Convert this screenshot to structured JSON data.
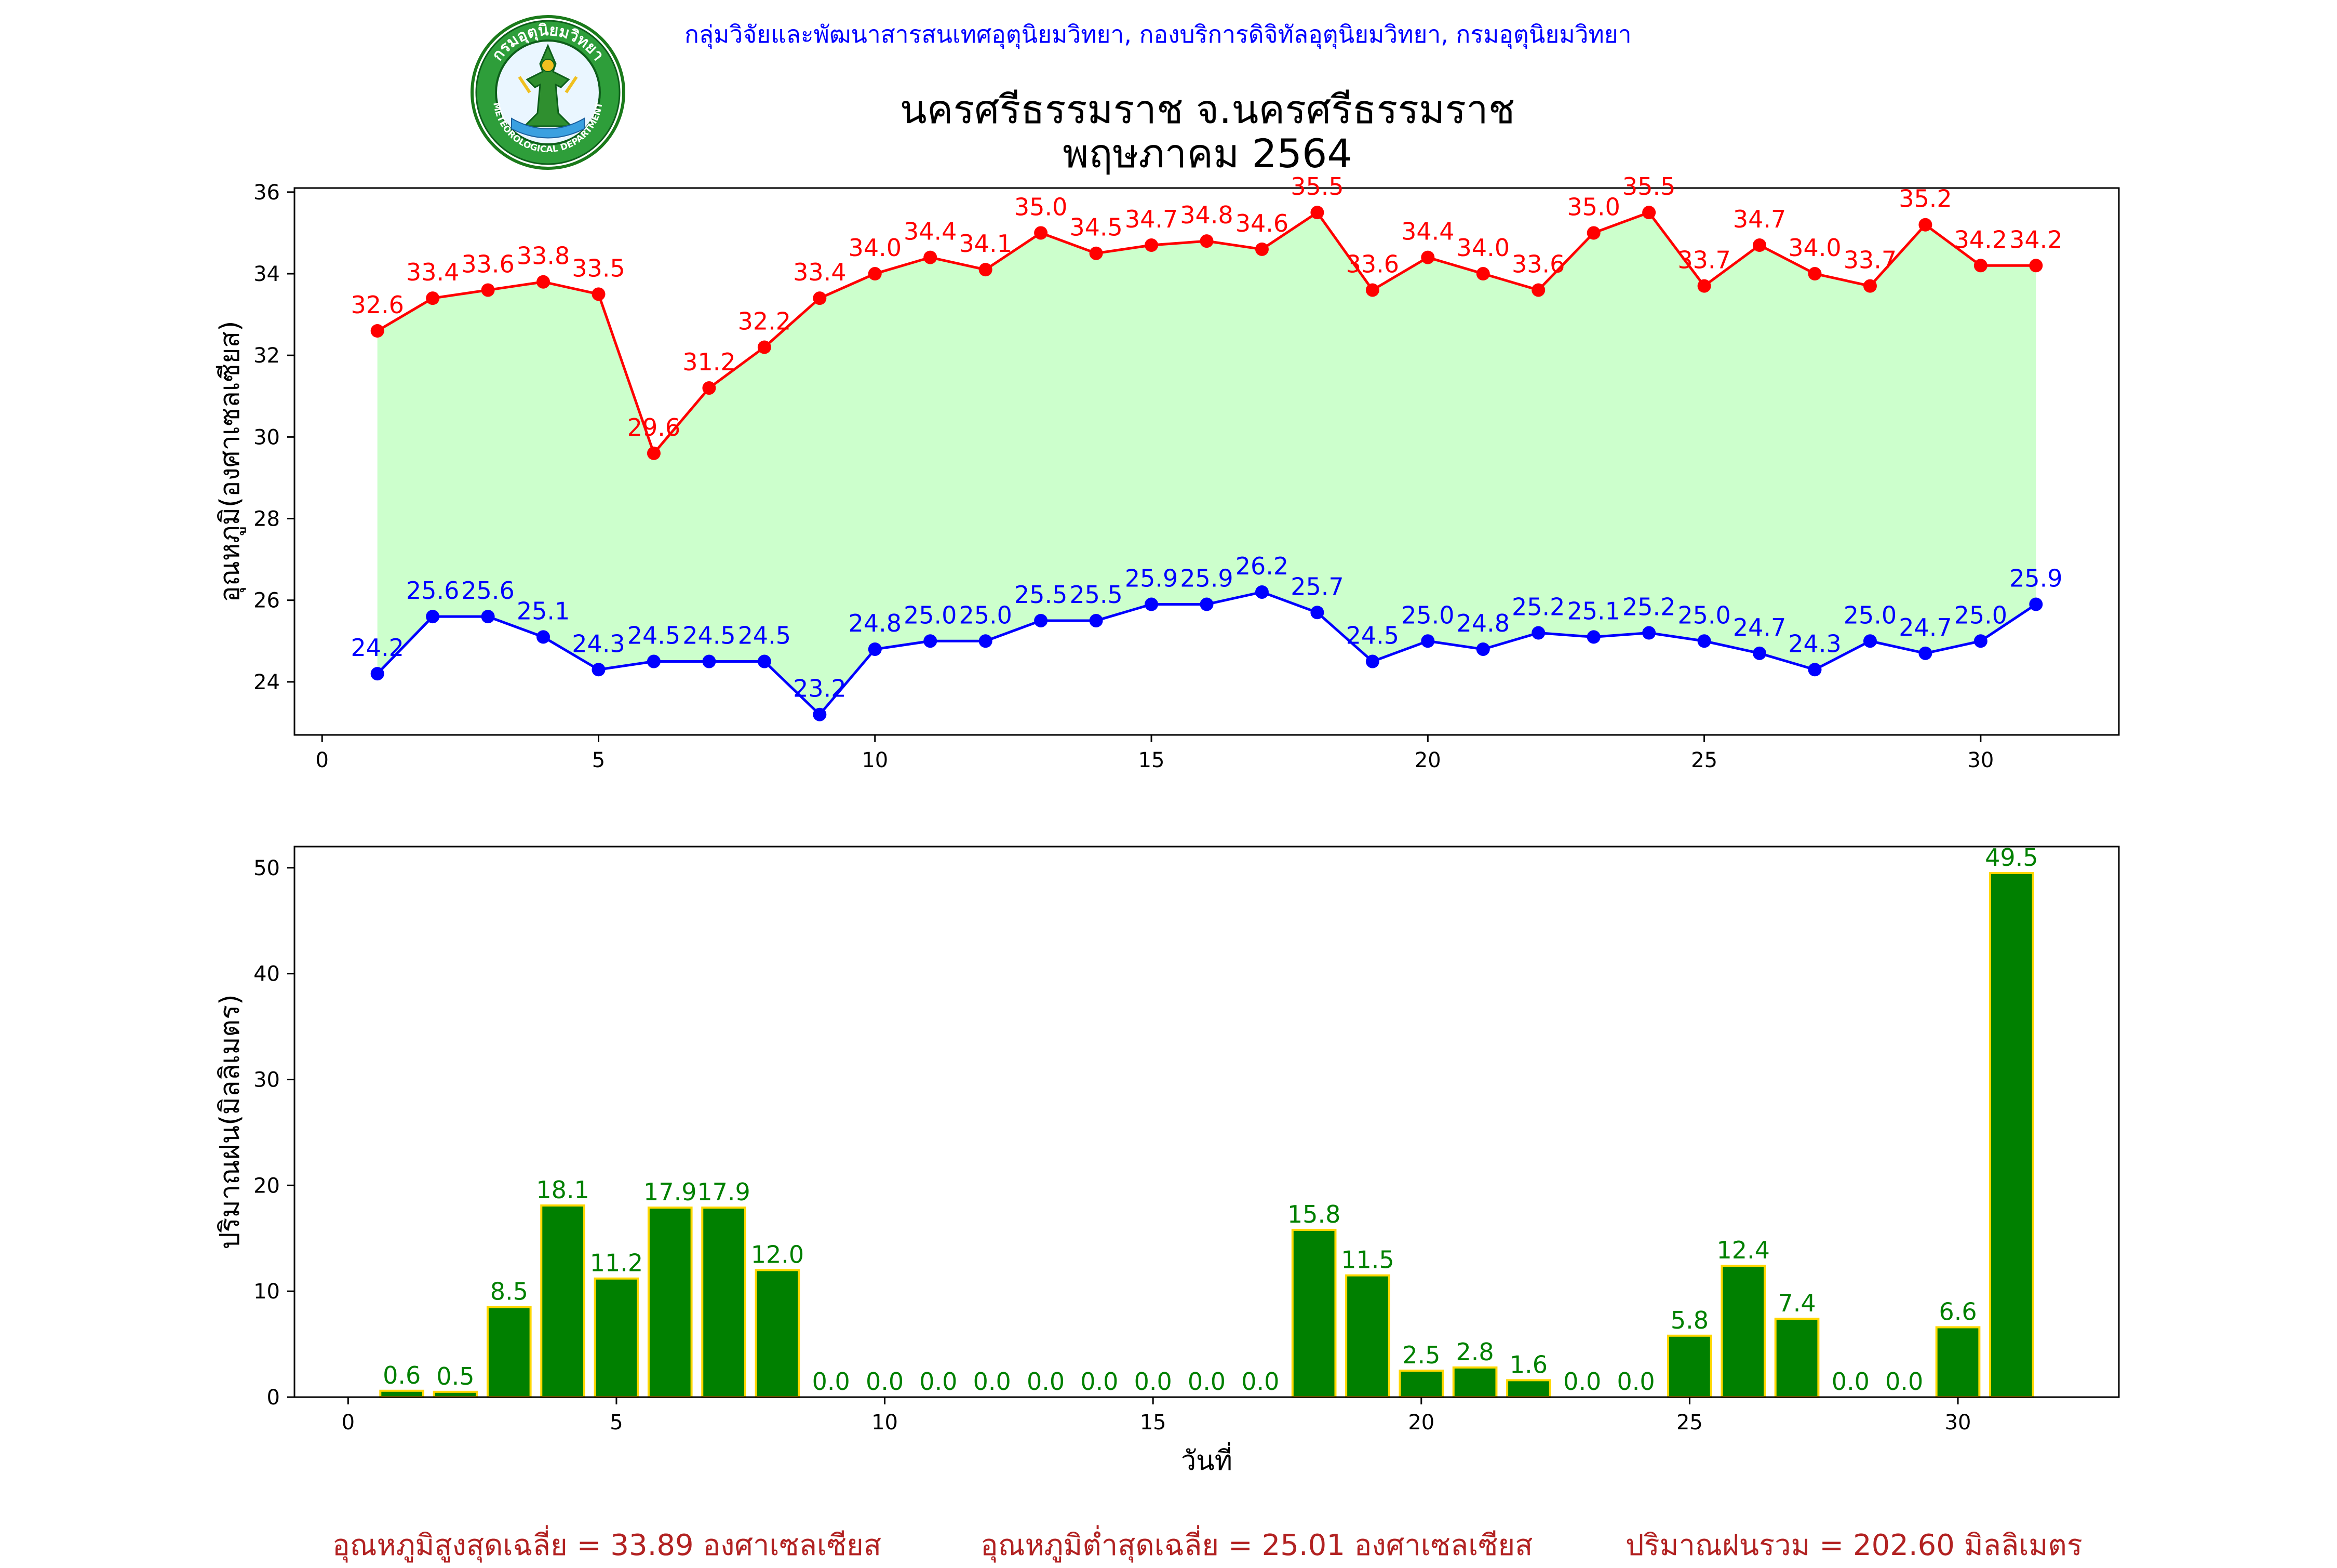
{
  "header": {
    "credit": "กลุ่มวิจัยและพัฒนาสารสนเทศอุตุนิยมวิทยา, กองบริการดิจิทัลอุตุนิยมวิทยา, กรมอุตุนิยมวิทยา",
    "title_line1": "นครศรีธรรมราช จ.นครศรีธรรมราช",
    "title_line2": "พฤษภาคม 2564",
    "logo": {
      "icon": "meteorological-department-seal",
      "ring_text_top": "กรมอุตุนิยมวิทยา",
      "ring_text_bottom": "METEOROLOGICAL DEPARTMENT"
    }
  },
  "summary": {
    "max_avg": "อุณหภูมิสูงสุดเฉลี่ย = 33.89 องศาเซลเซียส",
    "min_avg": "อุณหภูมิต่ำสุดเฉลี่ย = 25.01 องศาเซลเซียส",
    "rain_total": "ปริมาณฝนรวม = 202.60 มิลลิเมตร"
  },
  "chart_data": [
    {
      "type": "line",
      "ylabel": "อุณหภูมิ(องศาเซลเซียส)",
      "xlabel": "",
      "xlim": [
        -0.5,
        32.5
      ],
      "ylim": [
        22.7,
        36.1
      ],
      "xticks": [
        0,
        5,
        10,
        15,
        20,
        25,
        30
      ],
      "yticks": [
        24,
        26,
        28,
        30,
        32,
        34,
        36
      ],
      "x": [
        1,
        2,
        3,
        4,
        5,
        6,
        7,
        8,
        9,
        10,
        11,
        12,
        13,
        14,
        15,
        16,
        17,
        18,
        19,
        20,
        21,
        22,
        23,
        24,
        25,
        26,
        27,
        28,
        29,
        30,
        31
      ],
      "series": [
        {
          "color": "#ff0000",
          "values": [
            32.6,
            33.4,
            33.6,
            33.8,
            33.5,
            29.6,
            31.2,
            32.2,
            33.4,
            34.0,
            34.4,
            34.1,
            35.0,
            34.5,
            34.7,
            34.8,
            34.6,
            35.5,
            33.6,
            34.4,
            34.0,
            33.6,
            35.0,
            35.5,
            33.7,
            34.7,
            34.0,
            33.7,
            35.2,
            34.2,
            34.2
          ]
        },
        {
          "color": "#0000ff",
          "values": [
            24.2,
            25.6,
            25.6,
            25.1,
            24.3,
            24.5,
            24.5,
            24.5,
            23.2,
            24.8,
            25.0,
            25.0,
            25.5,
            25.5,
            25.9,
            25.9,
            26.2,
            25.7,
            24.5,
            25.0,
            24.8,
            25.2,
            25.1,
            25.2,
            25.0,
            24.7,
            24.3,
            25.0,
            24.7,
            25.0,
            25.9
          ]
        }
      ],
      "fill_color": "#ccffcc",
      "grid": false
    },
    {
      "type": "bar",
      "ylabel": "ปริมาณฝน(มิลลิเมตร)",
      "xlabel": "วันที่",
      "xlim": [
        -1,
        33
      ],
      "ylim": [
        0,
        52
      ],
      "xticks": [
        0,
        5,
        10,
        15,
        20,
        25,
        30
      ],
      "yticks": [
        0,
        10,
        20,
        30,
        40,
        50
      ],
      "x": [
        1,
        2,
        3,
        4,
        5,
        6,
        7,
        8,
        9,
        10,
        11,
        12,
        13,
        14,
        15,
        16,
        17,
        18,
        19,
        20,
        21,
        22,
        23,
        24,
        25,
        26,
        27,
        28,
        29,
        30,
        31
      ],
      "values": [
        0.6,
        0.5,
        8.5,
        18.1,
        11.2,
        17.9,
        17.9,
        12.0,
        0.0,
        0.0,
        0.0,
        0.0,
        0.0,
        0.0,
        0.0,
        0.0,
        0.0,
        15.8,
        11.5,
        2.5,
        2.8,
        1.6,
        0.0,
        0.0,
        5.8,
        12.4,
        7.4,
        0.0,
        0.0,
        6.6,
        49.5
      ],
      "bar_color": "#008000",
      "edge_color": "#ffd700",
      "label_color": "#008000",
      "grid": false
    }
  ]
}
